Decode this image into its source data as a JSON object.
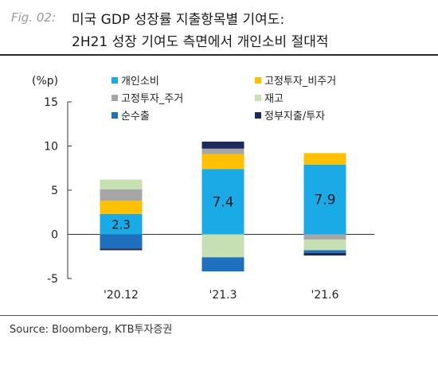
{
  "header": {
    "fig_label": "Fig. 02:",
    "title_line1": "미국 GDP 성장률 지출항목별 기여도:",
    "title_line2": "2H21 성장 기여도 측면에서 개인소비 절대적"
  },
  "source": "Source: Bloomberg, KTB투자증권",
  "colors": {
    "개인소비": "#1aabe6",
    "고정투자_비주거": "#ffc000",
    "고정투자_주거": "#a6a6a6",
    "재고": "#c6e0b4",
    "순수출": "#1f6fbf",
    "정부지출/투자": "#1f2a5c"
  },
  "chart_data": {
    "type": "bar",
    "stacked": true,
    "ylabel": "(%p)",
    "ylim": [
      -5,
      15
    ],
    "yticks": [
      -5,
      0,
      5,
      10,
      15
    ],
    "grid": false,
    "legend_position": "top",
    "categories": [
      "'20.12",
      "'21.3",
      "'21.6"
    ],
    "series": [
      {
        "name": "개인소비",
        "values": [
          2.3,
          7.4,
          7.9
        ]
      },
      {
        "name": "고정투자_비주거",
        "values": [
          1.5,
          1.7,
          1.3
        ]
      },
      {
        "name": "고정투자_주거",
        "values": [
          1.3,
          0.6,
          -0.6
        ]
      },
      {
        "name": "재고",
        "values": [
          1.1,
          -2.6,
          -1.2
        ]
      },
      {
        "name": "순수출",
        "values": [
          -1.6,
          -1.6,
          -0.3
        ]
      },
      {
        "name": "정부지출/투자",
        "values": [
          -0.2,
          0.8,
          -0.3
        ]
      }
    ],
    "data_labels": [
      {
        "category": "'20.12",
        "text": "2.3"
      },
      {
        "category": "'21.3",
        "text": "7.4"
      },
      {
        "category": "'21.6",
        "text": "7.9"
      }
    ]
  }
}
